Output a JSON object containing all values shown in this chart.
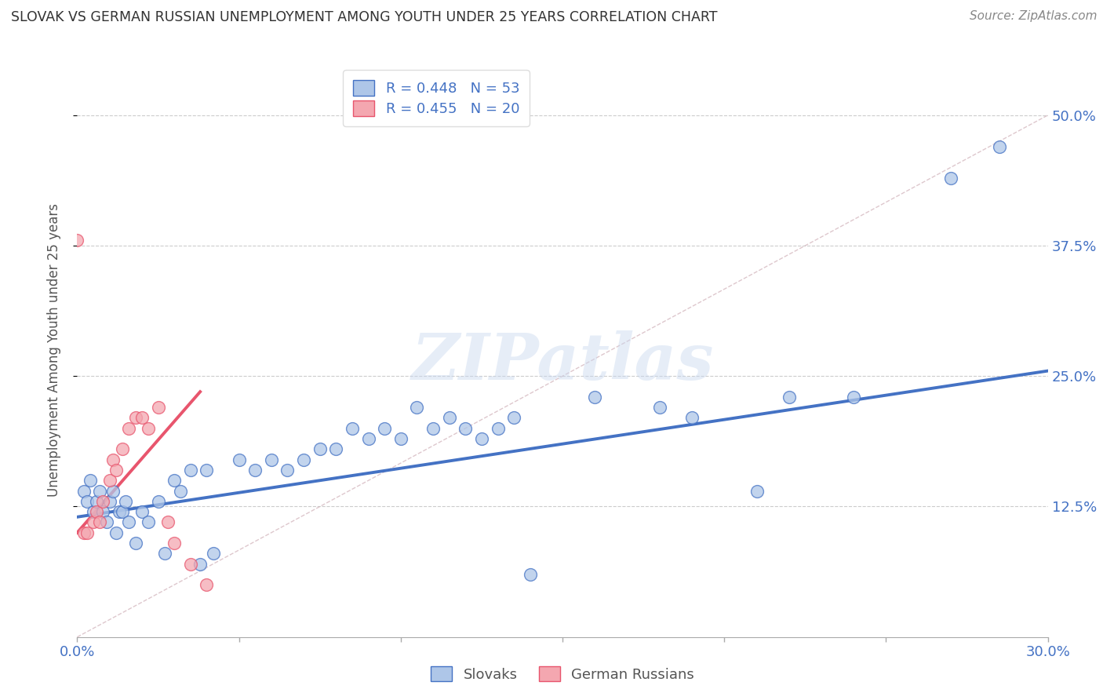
{
  "title": "SLOVAK VS GERMAN RUSSIAN UNEMPLOYMENT AMONG YOUTH UNDER 25 YEARS CORRELATION CHART",
  "source": "Source: ZipAtlas.com",
  "ylabel_label": "Unemployment Among Youth under 25 years",
  "xmin": 0.0,
  "xmax": 0.3,
  "ymin": 0.0,
  "ymax": 0.55,
  "xticks": [
    0.0,
    0.05,
    0.1,
    0.15,
    0.2,
    0.25,
    0.3
  ],
  "yticks": [
    0.125,
    0.25,
    0.375,
    0.5
  ],
  "ytick_labels": [
    "12.5%",
    "25.0%",
    "37.5%",
    "50.0%"
  ],
  "blue_scatter_x": [
    0.002,
    0.003,
    0.004,
    0.005,
    0.006,
    0.007,
    0.008,
    0.009,
    0.01,
    0.011,
    0.012,
    0.013,
    0.014,
    0.015,
    0.016,
    0.018,
    0.02,
    0.022,
    0.025,
    0.027,
    0.03,
    0.032,
    0.035,
    0.038,
    0.04,
    0.042,
    0.05,
    0.055,
    0.06,
    0.065,
    0.07,
    0.075,
    0.08,
    0.085,
    0.09,
    0.095,
    0.1,
    0.105,
    0.11,
    0.115,
    0.12,
    0.125,
    0.13,
    0.135,
    0.14,
    0.16,
    0.18,
    0.19,
    0.21,
    0.22,
    0.24,
    0.27,
    0.285
  ],
  "blue_scatter_y": [
    0.14,
    0.13,
    0.15,
    0.12,
    0.13,
    0.14,
    0.12,
    0.11,
    0.13,
    0.14,
    0.1,
    0.12,
    0.12,
    0.13,
    0.11,
    0.09,
    0.12,
    0.11,
    0.13,
    0.08,
    0.15,
    0.14,
    0.16,
    0.07,
    0.16,
    0.08,
    0.17,
    0.16,
    0.17,
    0.16,
    0.17,
    0.18,
    0.18,
    0.2,
    0.19,
    0.2,
    0.19,
    0.22,
    0.2,
    0.21,
    0.2,
    0.19,
    0.2,
    0.21,
    0.06,
    0.23,
    0.22,
    0.21,
    0.14,
    0.23,
    0.23,
    0.44,
    0.47
  ],
  "pink_scatter_x": [
    0.002,
    0.003,
    0.005,
    0.006,
    0.007,
    0.008,
    0.01,
    0.011,
    0.012,
    0.014,
    0.016,
    0.018,
    0.02,
    0.022,
    0.025,
    0.028,
    0.03,
    0.035,
    0.04,
    0.0
  ],
  "pink_scatter_y": [
    0.1,
    0.1,
    0.11,
    0.12,
    0.11,
    0.13,
    0.15,
    0.17,
    0.16,
    0.18,
    0.2,
    0.21,
    0.21,
    0.2,
    0.22,
    0.11,
    0.09,
    0.07,
    0.05,
    0.38
  ],
  "blue_line_x": [
    0.0,
    0.3
  ],
  "blue_line_y": [
    0.115,
    0.255
  ],
  "pink_line_x": [
    0.0,
    0.038
  ],
  "pink_line_y": [
    0.1,
    0.235
  ],
  "diagonal_line_x": [
    0.0,
    0.3
  ],
  "diagonal_line_y": [
    0.0,
    0.5
  ],
  "blue_color": "#4472c4",
  "pink_color": "#e8556d",
  "blue_fill_color": "#aec6e8",
  "pink_fill_color": "#f4a7b0",
  "diagonal_color": "#c0c0c0",
  "watermark_text": "ZIPatlas",
  "title_color": "#333333",
  "axis_label_color": "#4472c4",
  "right_axis_color": "#4472c4",
  "legend_label_blue": "R = 0.448   N = 53",
  "legend_label_pink": "R = 0.455   N = 20",
  "bottom_label_blue": "Slovaks",
  "bottom_label_pink": "German Russians"
}
